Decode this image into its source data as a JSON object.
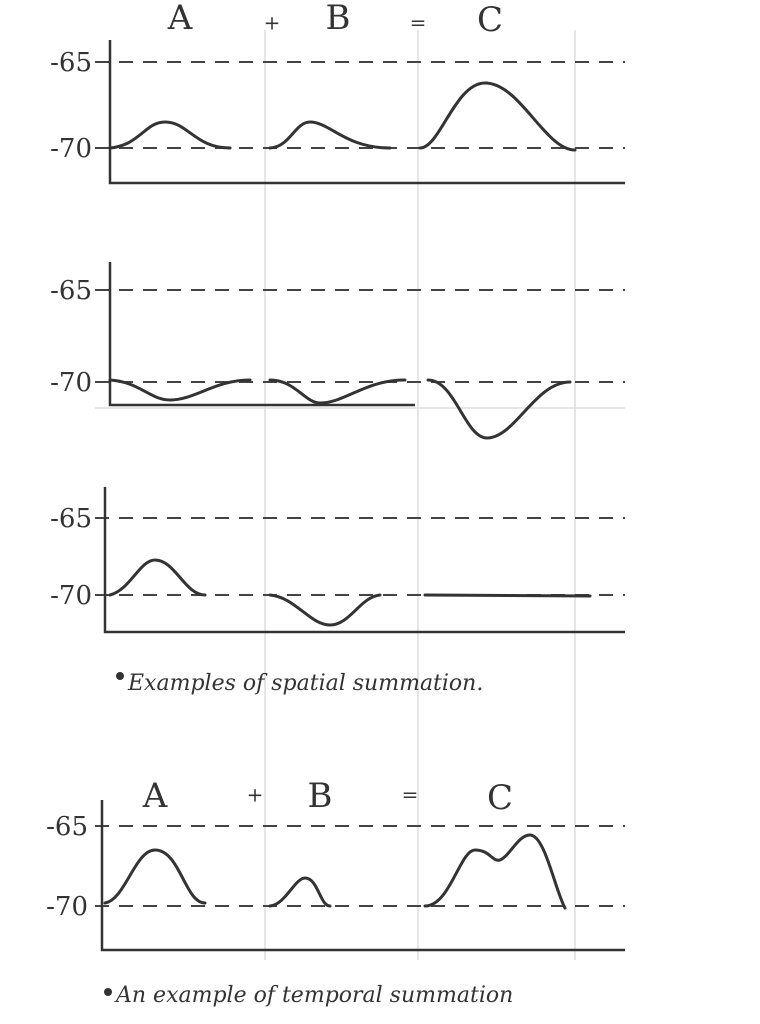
{
  "spatial": {
    "header": {
      "a": "A",
      "plus": "+",
      "b": "B",
      "equals": "=",
      "c": "C"
    },
    "panels": [
      {
        "upper_label": "-65",
        "lower_label": "-70"
      },
      {
        "upper_label": "-65",
        "lower_label": "-70"
      },
      {
        "upper_label": "-65",
        "lower_label": "-70"
      }
    ],
    "caption": "Examples of spatial summation."
  },
  "temporal": {
    "header": {
      "a": "A",
      "plus": "+",
      "b": "B",
      "equals": "=",
      "c": "C"
    },
    "panel": {
      "upper_label": "-65",
      "lower_label": "-70"
    },
    "caption": "An example of temporal summation"
  }
}
